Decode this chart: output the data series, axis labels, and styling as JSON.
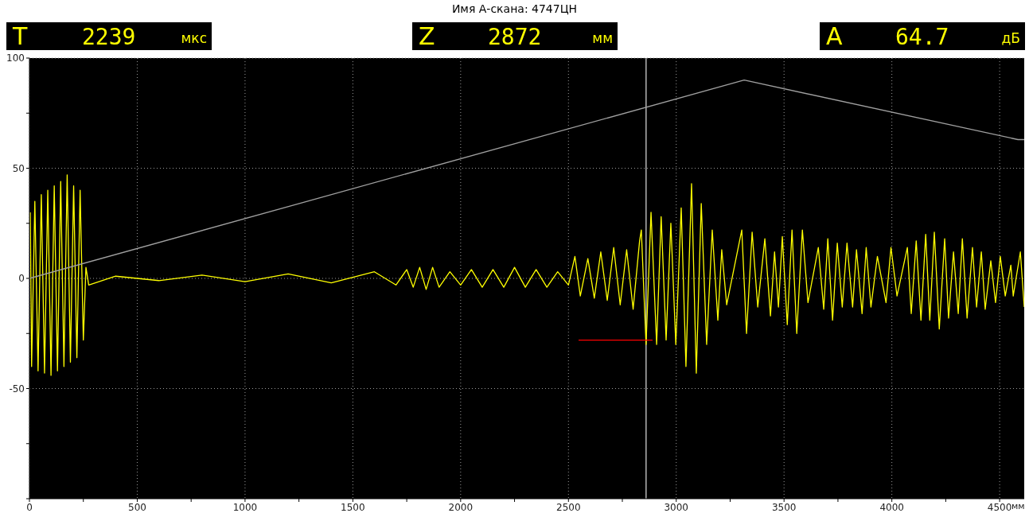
{
  "chart_data": {
    "type": "line",
    "title": "Имя А-скана: 4747ЦН",
    "xlabel": "мм",
    "annotations": [
      "T 2239 мкс",
      "Z 2872 мм",
      "A 64.7 дБ"
    ],
    "xlim": [
      0,
      4614
    ],
    "ylim": [
      -100,
      100
    ],
    "xticks": [
      0,
      {
        "value": 250,
        "label": null
      },
      500,
      {
        "value": 750,
        "label": null
      },
      1000,
      {
        "value": 1250,
        "label": null
      },
      1500,
      {
        "value": 1750,
        "label": null
      },
      2000,
      {
        "value": 2250,
        "label": null
      },
      2500,
      {
        "value": 2750,
        "label": null
      },
      3000,
      {
        "value": 3250,
        "label": null
      },
      3500,
      {
        "value": 3750,
        "label": null
      },
      4000,
      {
        "value": 4250,
        "label": null
      },
      4500
    ],
    "yticks": [
      {
        "value": -100,
        "label": null
      },
      {
        "value": -75,
        "label": null
      },
      -50,
      {
        "value": -25,
        "label": null
      },
      0,
      {
        "value": 25,
        "label": null
      },
      50,
      {
        "value": 75,
        "label": null
      },
      100
    ],
    "grid": true,
    "marker": "none",
    "line_style": "solid",
    "ref_lines": [
      {
        "axis": "x",
        "value": 2860,
        "color": "#b4b4b4"
      }
    ],
    "series": [
      {
        "color": "#ffff00",
        "x": [
          4,
          10,
          25,
          40,
          55,
          70,
          85,
          100,
          115,
          130,
          145,
          160,
          175,
          190,
          205,
          220,
          235,
          250,
          262,
          275,
          400,
          600,
          800,
          1000,
          1200,
          1400,
          1600,
          1700,
          1750,
          1780,
          1810,
          1840,
          1870,
          1900,
          1950,
          2000,
          2050,
          2100,
          2150,
          2200,
          2250,
          2300,
          2350,
          2400,
          2450,
          2500,
          2530,
          2555,
          2590,
          2620,
          2650,
          2680,
          2710,
          2740,
          2770,
          2800,
          2830,
          2838,
          2860,
          2883,
          2909,
          2930,
          2953,
          2975,
          2998,
          3023,
          3045,
          3071,
          3093,
          3116,
          3141,
          3167,
          3193,
          3211,
          3234,
          3304,
          3326,
          3352,
          3378,
          3411,
          3437,
          3456,
          3474,
          3492,
          3515,
          3537,
          3559,
          3585,
          3611,
          3659,
          3684,
          3703,
          3725,
          3747,
          3770,
          3792,
          3818,
          3836,
          3862,
          3881,
          3903,
          3933,
          3973,
          3996,
          4024,
          4072,
          4090,
          4113,
          4135,
          4157,
          4176,
          4197,
          4220,
          4245,
          4263,
          4286,
          4308,
          4327,
          4349,
          4374,
          4393,
          4415,
          4433,
          4459,
          4481,
          4503,
          4526,
          4552,
          4563,
          4596,
          4614
        ],
        "values": [
          30,
          -40,
          35,
          -42,
          38,
          -43,
          40,
          -44,
          42,
          -42,
          44,
          -40,
          47,
          -38,
          42,
          -36,
          40,
          -28,
          5,
          -3,
          1,
          -1,
          1.5,
          -1.5,
          2,
          -2,
          3,
          -3,
          4,
          -4,
          5,
          -5,
          5,
          -4,
          3,
          -3,
          4,
          -4,
          4,
          -4,
          5,
          -4,
          4,
          -4,
          3,
          -3,
          10,
          -8,
          9,
          -9,
          12,
          -10,
          14,
          -12,
          13,
          -14,
          17,
          22,
          -30,
          30,
          -30,
          28,
          -28,
          25,
          -30,
          32,
          -40,
          43,
          -43,
          34,
          -30,
          22,
          -19,
          13,
          -12,
          22,
          -25,
          21,
          -13,
          18,
          -17,
          12,
          -13,
          19,
          -21,
          22,
          -25,
          22,
          -11,
          14,
          -14,
          18,
          -19,
          16,
          -13,
          16,
          -13,
          13,
          -16,
          14,
          -13,
          10,
          -11,
          14,
          -8,
          14,
          -16,
          17,
          -19,
          20,
          -19,
          21,
          -23,
          18,
          -18,
          12,
          -16,
          18,
          -18,
          14,
          -13,
          12,
          -14,
          8,
          -11,
          10,
          -8,
          6,
          -8,
          12,
          -13
        ]
      },
      {
        "color": "#a0a0a0",
        "x": [
          0,
          3315,
          4585,
          4614
        ],
        "values": [
          0,
          90,
          63,
          63
        ]
      },
      {
        "color": "#ff0000",
        "x": [
          2547,
          2890
        ],
        "values": [
          -28,
          -28
        ]
      }
    ]
  }
}
